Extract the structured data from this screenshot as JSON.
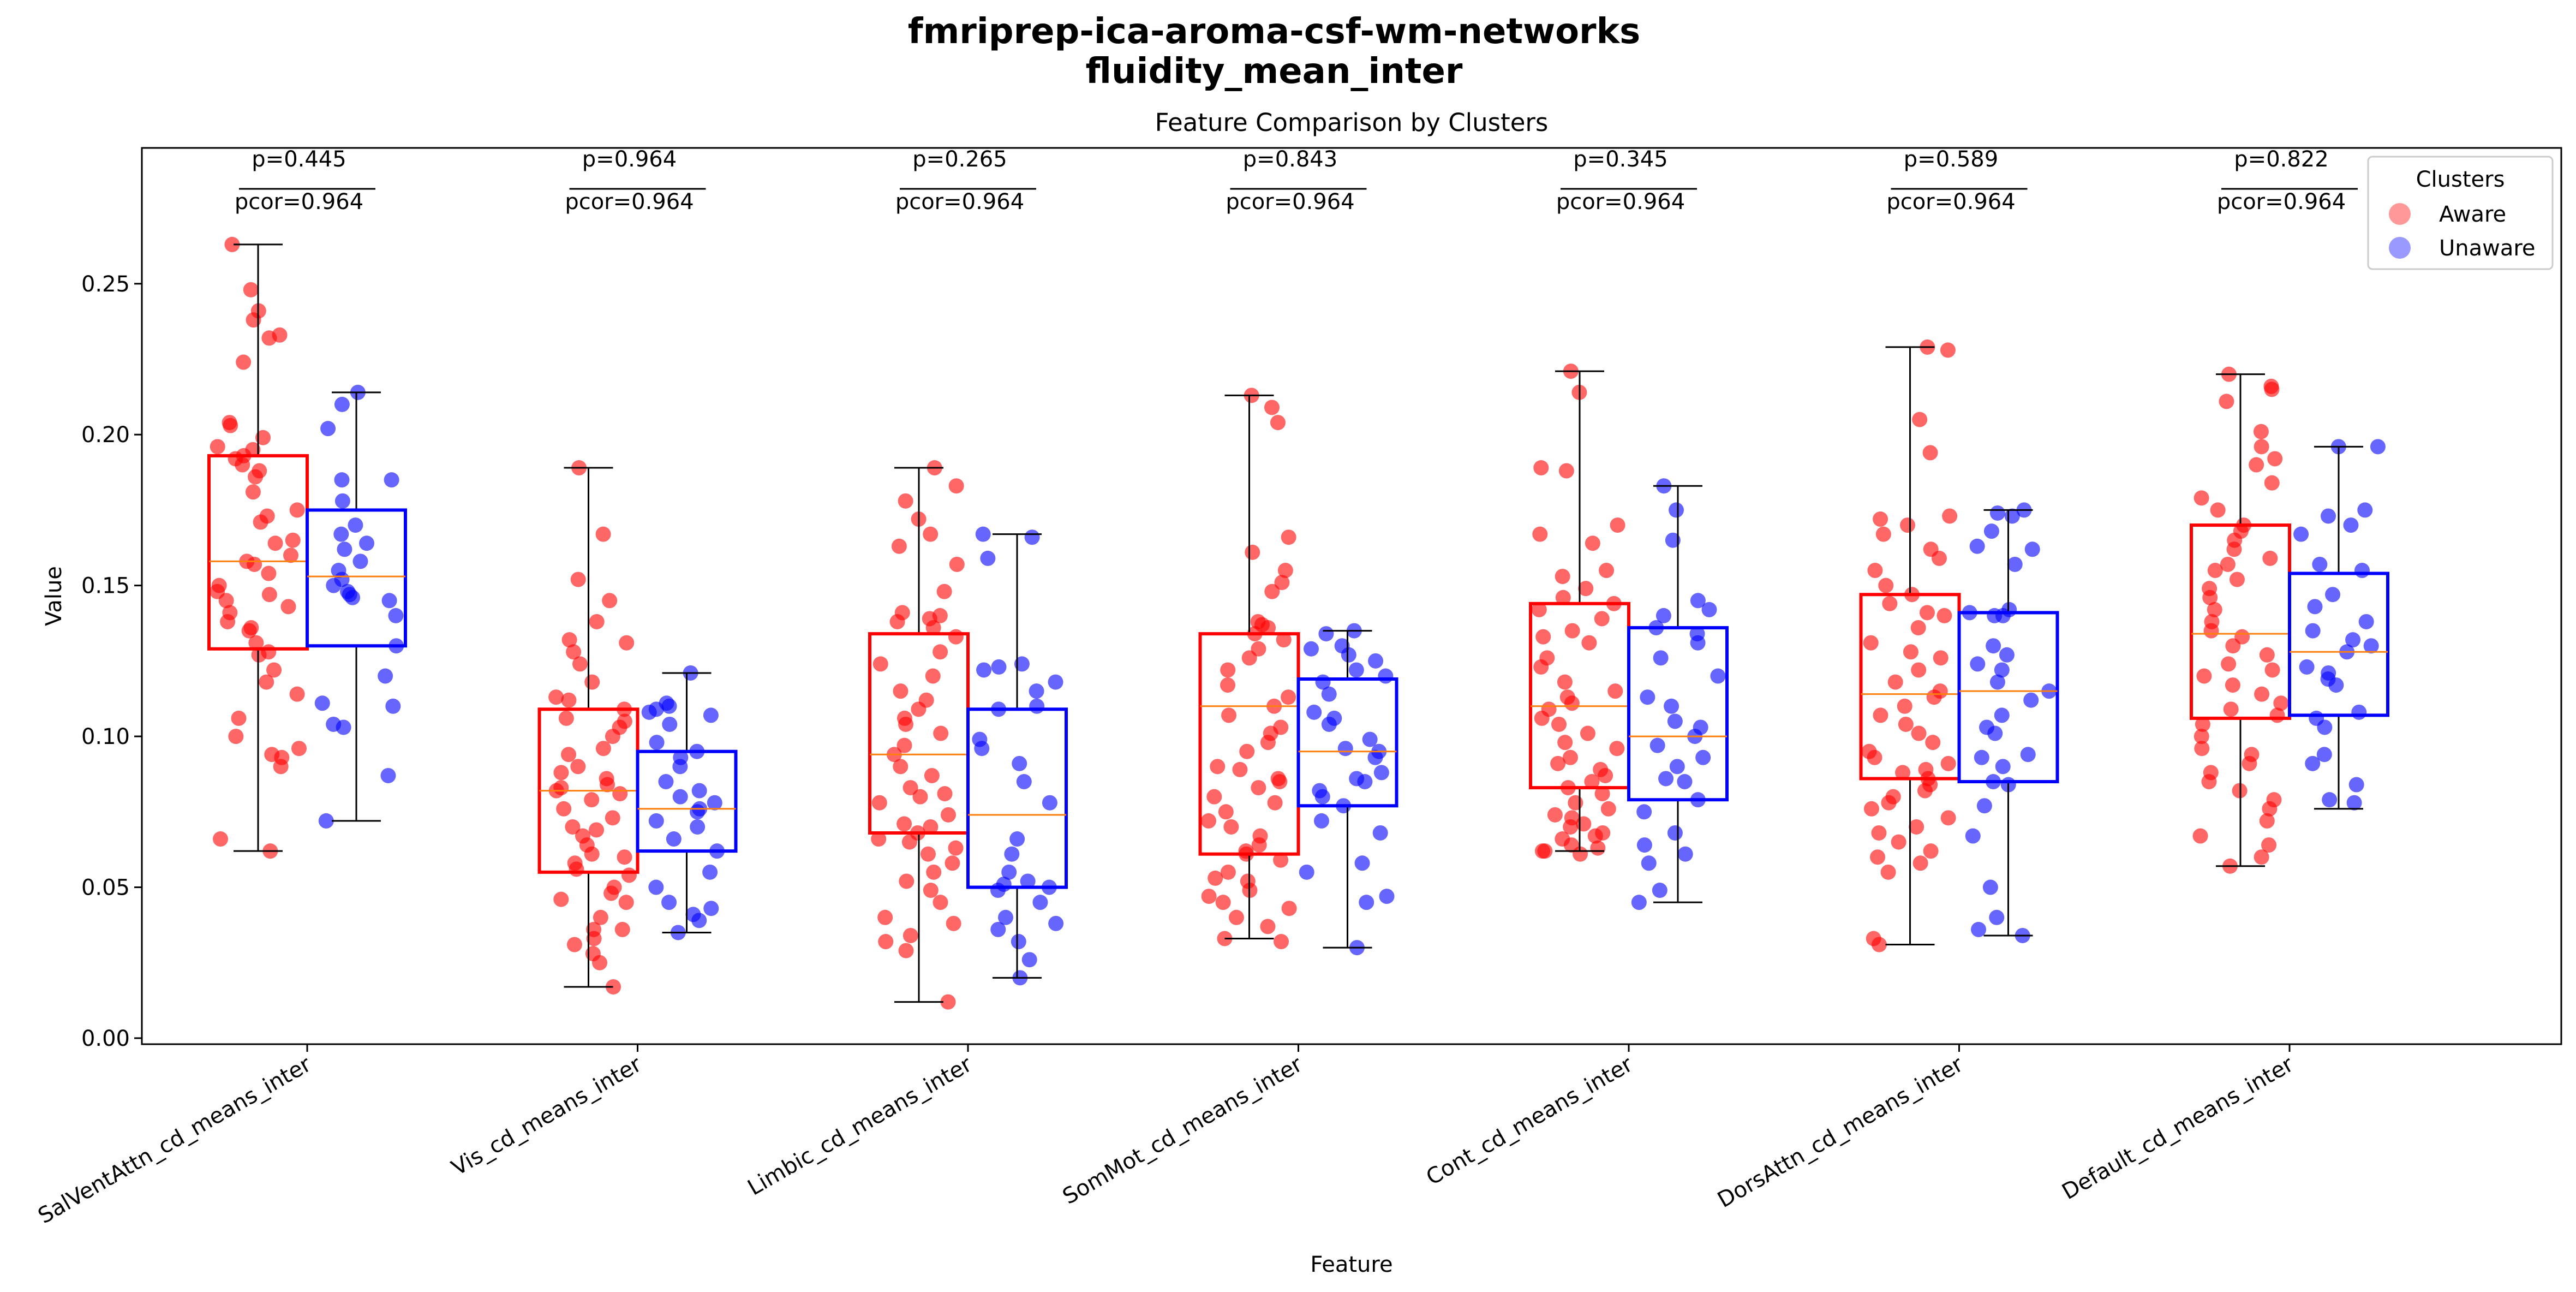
{
  "suptitle_line1": "fmriprep-ica-aroma-csf-wm-networks",
  "suptitle_line2": "fluidity_mean_inter",
  "chart_data": {
    "type": "boxplot",
    "title": "Feature Comparison by Clusters",
    "xlabel": "Feature",
    "ylabel": "Value",
    "ylim": [
      -0.002,
      0.295
    ],
    "yticks": [
      0.0,
      0.05,
      0.1,
      0.15,
      0.2,
      0.25
    ],
    "ytick_labels": [
      "0.00",
      "0.05",
      "0.10",
      "0.15",
      "0.20",
      "0.25"
    ],
    "grid": false,
    "legend": {
      "title": "Clusters",
      "position": "top-right",
      "entries": [
        "Aware",
        "Unaware"
      ]
    },
    "colors": {
      "Aware": "#ff0000",
      "Unaware": "#0000ff",
      "median": "#ff7f0e"
    },
    "categories": [
      "SalVentAttn_cd_means_inter",
      "Vis_cd_means_inter",
      "Limbic_cd_means_inter",
      "SomMot_cd_means_inter",
      "Cont_cd_means_inter",
      "DorsAttn_cd_means_inter",
      "Default_cd_means_inter"
    ],
    "p_values": [
      "p=0.445",
      "p=0.964",
      "p=0.265",
      "p=0.843",
      "p=0.345",
      "p=0.589",
      "p=0.822"
    ],
    "pcor_values": [
      "pcor=0.964",
      "pcor=0.964",
      "pcor=0.964",
      "pcor=0.964",
      "pcor=0.964",
      "pcor=0.964",
      "pcor=0.964"
    ],
    "series": [
      {
        "name": "Aware",
        "boxes": [
          {
            "whislo": 0.062,
            "q1": 0.129,
            "med": 0.158,
            "q3": 0.193,
            "whishi": 0.263
          },
          {
            "whislo": 0.017,
            "q1": 0.055,
            "med": 0.082,
            "q3": 0.109,
            "whishi": 0.189
          },
          {
            "whislo": 0.012,
            "q1": 0.068,
            "med": 0.094,
            "q3": 0.134,
            "whishi": 0.189
          },
          {
            "whislo": 0.033,
            "q1": 0.061,
            "med": 0.11,
            "q3": 0.134,
            "whishi": 0.213
          },
          {
            "whislo": 0.062,
            "q1": 0.083,
            "med": 0.11,
            "q3": 0.144,
            "whishi": 0.221
          },
          {
            "whislo": 0.031,
            "q1": 0.086,
            "med": 0.114,
            "q3": 0.147,
            "whishi": 0.229
          },
          {
            "whislo": 0.057,
            "q1": 0.106,
            "med": 0.134,
            "q3": 0.17,
            "whishi": 0.22
          }
        ],
        "points": [
          [
            0.263,
            0.248,
            0.241,
            0.238,
            0.233,
            0.232,
            0.224,
            0.204,
            0.203,
            0.199,
            0.196,
            0.195,
            0.193,
            0.192,
            0.19,
            0.188,
            0.186,
            0.181,
            0.175,
            0.173,
            0.171,
            0.165,
            0.164,
            0.16,
            0.158,
            0.157,
            0.154,
            0.15,
            0.148,
            0.147,
            0.145,
            0.143,
            0.141,
            0.138,
            0.136,
            0.135,
            0.131,
            0.128,
            0.127,
            0.122,
            0.118,
            0.114,
            0.106,
            0.1,
            0.096,
            0.094,
            0.093,
            0.09,
            0.066,
            0.062
          ],
          [
            0.189,
            0.167,
            0.152,
            0.145,
            0.138,
            0.132,
            0.131,
            0.128,
            0.124,
            0.118,
            0.113,
            0.112,
            0.109,
            0.106,
            0.105,
            0.103,
            0.1,
            0.096,
            0.094,
            0.09,
            0.088,
            0.086,
            0.084,
            0.083,
            0.082,
            0.081,
            0.079,
            0.076,
            0.073,
            0.07,
            0.069,
            0.067,
            0.064,
            0.061,
            0.06,
            0.058,
            0.056,
            0.054,
            0.05,
            0.048,
            0.046,
            0.045,
            0.04,
            0.036,
            0.036,
            0.033,
            0.031,
            0.028,
            0.025,
            0.017
          ],
          [
            0.189,
            0.183,
            0.178,
            0.172,
            0.167,
            0.163,
            0.157,
            0.148,
            0.141,
            0.14,
            0.139,
            0.138,
            0.136,
            0.133,
            0.128,
            0.124,
            0.12,
            0.115,
            0.112,
            0.109,
            0.106,
            0.104,
            0.101,
            0.097,
            0.094,
            0.09,
            0.087,
            0.083,
            0.081,
            0.08,
            0.078,
            0.074,
            0.071,
            0.07,
            0.068,
            0.066,
            0.065,
            0.063,
            0.061,
            0.058,
            0.055,
            0.052,
            0.049,
            0.045,
            0.04,
            0.038,
            0.034,
            0.032,
            0.029,
            0.012
          ],
          [
            0.213,
            0.209,
            0.204,
            0.166,
            0.161,
            0.155,
            0.151,
            0.148,
            0.138,
            0.137,
            0.136,
            0.134,
            0.132,
            0.129,
            0.126,
            0.122,
            0.117,
            0.113,
            0.11,
            0.107,
            0.103,
            0.101,
            0.098,
            0.095,
            0.09,
            0.089,
            0.086,
            0.085,
            0.083,
            0.08,
            0.078,
            0.075,
            0.072,
            0.07,
            0.067,
            0.064,
            0.062,
            0.061,
            0.059,
            0.055,
            0.053,
            0.052,
            0.049,
            0.047,
            0.045,
            0.043,
            0.04,
            0.037,
            0.033,
            0.032
          ],
          [
            0.221,
            0.214,
            0.189,
            0.188,
            0.17,
            0.167,
            0.164,
            0.155,
            0.153,
            0.149,
            0.146,
            0.144,
            0.142,
            0.139,
            0.135,
            0.133,
            0.131,
            0.126,
            0.123,
            0.118,
            0.115,
            0.113,
            0.111,
            0.109,
            0.106,
            0.104,
            0.101,
            0.098,
            0.096,
            0.093,
            0.091,
            0.089,
            0.087,
            0.085,
            0.083,
            0.081,
            0.078,
            0.076,
            0.074,
            0.073,
            0.071,
            0.07,
            0.068,
            0.067,
            0.066,
            0.064,
            0.063,
            0.062,
            0.062,
            0.061
          ],
          [
            0.229,
            0.228,
            0.205,
            0.194,
            0.173,
            0.172,
            0.17,
            0.167,
            0.162,
            0.159,
            0.155,
            0.15,
            0.147,
            0.144,
            0.141,
            0.14,
            0.136,
            0.131,
            0.128,
            0.126,
            0.122,
            0.118,
            0.115,
            0.113,
            0.11,
            0.107,
            0.104,
            0.101,
            0.098,
            0.095,
            0.093,
            0.091,
            0.089,
            0.088,
            0.086,
            0.084,
            0.082,
            0.08,
            0.078,
            0.076,
            0.073,
            0.07,
            0.068,
            0.065,
            0.062,
            0.06,
            0.058,
            0.055,
            0.033,
            0.031
          ],
          [
            0.22,
            0.216,
            0.215,
            0.211,
            0.201,
            0.196,
            0.192,
            0.19,
            0.184,
            0.179,
            0.175,
            0.17,
            0.168,
            0.165,
            0.162,
            0.159,
            0.157,
            0.155,
            0.152,
            0.149,
            0.146,
            0.142,
            0.138,
            0.135,
            0.133,
            0.13,
            0.127,
            0.124,
            0.122,
            0.12,
            0.117,
            0.114,
            0.111,
            0.109,
            0.107,
            0.104,
            0.1,
            0.096,
            0.094,
            0.091,
            0.088,
            0.085,
            0.082,
            0.079,
            0.076,
            0.072,
            0.067,
            0.064,
            0.06,
            0.057
          ]
        ]
      },
      {
        "name": "Unaware",
        "boxes": [
          {
            "whislo": 0.072,
            "q1": 0.13,
            "med": 0.153,
            "q3": 0.175,
            "whishi": 0.214
          },
          {
            "whislo": 0.035,
            "q1": 0.062,
            "med": 0.076,
            "q3": 0.095,
            "whishi": 0.121
          },
          {
            "whislo": 0.02,
            "q1": 0.05,
            "med": 0.074,
            "q3": 0.109,
            "whishi": 0.167
          },
          {
            "whislo": 0.03,
            "q1": 0.077,
            "med": 0.095,
            "q3": 0.119,
            "whishi": 0.135
          },
          {
            "whislo": 0.045,
            "q1": 0.079,
            "med": 0.1,
            "q3": 0.136,
            "whishi": 0.183
          },
          {
            "whislo": 0.034,
            "q1": 0.085,
            "med": 0.115,
            "q3": 0.141,
            "whishi": 0.175
          },
          {
            "whislo": 0.076,
            "q1": 0.107,
            "med": 0.128,
            "q3": 0.154,
            "whishi": 0.196
          }
        ],
        "points": [
          [
            0.214,
            0.21,
            0.202,
            0.185,
            0.185,
            0.178,
            0.17,
            0.167,
            0.164,
            0.162,
            0.158,
            0.155,
            0.152,
            0.15,
            0.148,
            0.147,
            0.146,
            0.145,
            0.14,
            0.13,
            0.12,
            0.111,
            0.11,
            0.104,
            0.103,
            0.087,
            0.072
          ],
          [
            0.121,
            0.111,
            0.11,
            0.109,
            0.108,
            0.107,
            0.104,
            0.098,
            0.095,
            0.093,
            0.09,
            0.085,
            0.082,
            0.08,
            0.078,
            0.076,
            0.075,
            0.072,
            0.07,
            0.066,
            0.062,
            0.055,
            0.05,
            0.045,
            0.043,
            0.041,
            0.039,
            0.035
          ],
          [
            0.167,
            0.166,
            0.159,
            0.124,
            0.123,
            0.122,
            0.118,
            0.115,
            0.11,
            0.109,
            0.099,
            0.096,
            0.091,
            0.085,
            0.078,
            0.066,
            0.061,
            0.055,
            0.052,
            0.051,
            0.05,
            0.049,
            0.045,
            0.04,
            0.038,
            0.036,
            0.032,
            0.026,
            0.02
          ],
          [
            0.135,
            0.134,
            0.13,
            0.129,
            0.127,
            0.125,
            0.122,
            0.12,
            0.118,
            0.114,
            0.108,
            0.106,
            0.104,
            0.099,
            0.096,
            0.095,
            0.093,
            0.088,
            0.086,
            0.085,
            0.082,
            0.08,
            0.077,
            0.072,
            0.068,
            0.058,
            0.055,
            0.047,
            0.045,
            0.03
          ],
          [
            0.183,
            0.175,
            0.165,
            0.145,
            0.142,
            0.14,
            0.136,
            0.134,
            0.131,
            0.126,
            0.12,
            0.113,
            0.11,
            0.105,
            0.103,
            0.1,
            0.097,
            0.093,
            0.09,
            0.086,
            0.085,
            0.079,
            0.075,
            0.068,
            0.064,
            0.061,
            0.058,
            0.049,
            0.045
          ],
          [
            0.175,
            0.174,
            0.173,
            0.168,
            0.163,
            0.162,
            0.157,
            0.142,
            0.141,
            0.14,
            0.14,
            0.13,
            0.127,
            0.124,
            0.122,
            0.118,
            0.115,
            0.112,
            0.107,
            0.103,
            0.101,
            0.094,
            0.093,
            0.09,
            0.085,
            0.084,
            0.077,
            0.067,
            0.05,
            0.04,
            0.036,
            0.034
          ],
          [
            0.196,
            0.196,
            0.175,
            0.173,
            0.17,
            0.167,
            0.157,
            0.155,
            0.147,
            0.143,
            0.138,
            0.135,
            0.132,
            0.13,
            0.128,
            0.123,
            0.121,
            0.119,
            0.117,
            0.108,
            0.106,
            0.103,
            0.094,
            0.091,
            0.084,
            0.079,
            0.078
          ]
        ]
      }
    ]
  }
}
